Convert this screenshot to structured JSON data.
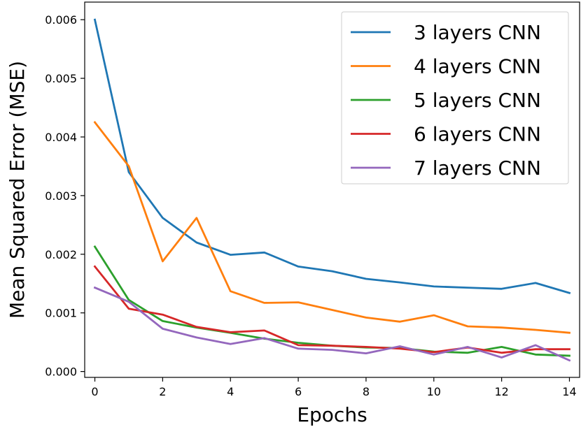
{
  "chart_data": {
    "type": "line",
    "title": "",
    "xlabel": "Epochs",
    "ylabel": "Mean Squared Error (MSE)",
    "xlim": [
      -0.3,
      14.3
    ],
    "ylim": [
      -0.0001,
      0.0063
    ],
    "xticks": [
      0,
      2,
      4,
      6,
      8,
      10,
      12,
      14
    ],
    "xtick_labels": [
      "0",
      "2",
      "4",
      "6",
      "8",
      "10",
      "12",
      "14"
    ],
    "yticks": [
      0.0,
      0.001,
      0.002,
      0.003,
      0.004,
      0.005,
      0.006
    ],
    "ytick_labels": [
      "0.000",
      "0.001",
      "0.002",
      "0.003",
      "0.004",
      "0.005",
      "0.006"
    ],
    "grid": false,
    "legend_position": "top-right",
    "x": [
      0,
      1,
      2,
      3,
      4,
      5,
      6,
      7,
      8,
      9,
      10,
      11,
      12,
      13,
      14
    ],
    "series": [
      {
        "name": "3 layers CNN",
        "color": "#1f77b4",
        "values": [
          0.006,
          0.0034,
          0.00262,
          0.0022,
          0.00199,
          0.00203,
          0.00179,
          0.00171,
          0.00158,
          0.00152,
          0.00145,
          0.00143,
          0.00141,
          0.00151,
          0.00134
        ]
      },
      {
        "name": "4 layers CNN",
        "color": "#ff7f0e",
        "values": [
          0.00425,
          0.0035,
          0.00188,
          0.00262,
          0.00137,
          0.00117,
          0.00118,
          0.00105,
          0.00092,
          0.00085,
          0.00096,
          0.00077,
          0.00075,
          0.00071,
          0.00066
        ]
      },
      {
        "name": "5 layers CNN",
        "color": "#2ca02c",
        "values": [
          0.00213,
          0.00122,
          0.00086,
          0.00075,
          0.00066,
          0.00056,
          0.00049,
          0.00044,
          0.00041,
          0.0004,
          0.00034,
          0.00032,
          0.00042,
          0.00029,
          0.00027
        ]
      },
      {
        "name": "6 layers CNN",
        "color": "#d62728",
        "values": [
          0.00179,
          0.00107,
          0.00097,
          0.00076,
          0.00067,
          0.0007,
          0.00045,
          0.00044,
          0.00042,
          0.00039,
          0.00033,
          0.00041,
          0.00032,
          0.00038,
          0.00038
        ]
      },
      {
        "name": "7 layers CNN",
        "color": "#9467bd",
        "values": [
          0.00143,
          0.00119,
          0.00073,
          0.00058,
          0.00047,
          0.00057,
          0.00039,
          0.00037,
          0.00031,
          0.00043,
          0.00029,
          0.00042,
          0.00024,
          0.00045,
          0.00019
        ]
      }
    ]
  }
}
